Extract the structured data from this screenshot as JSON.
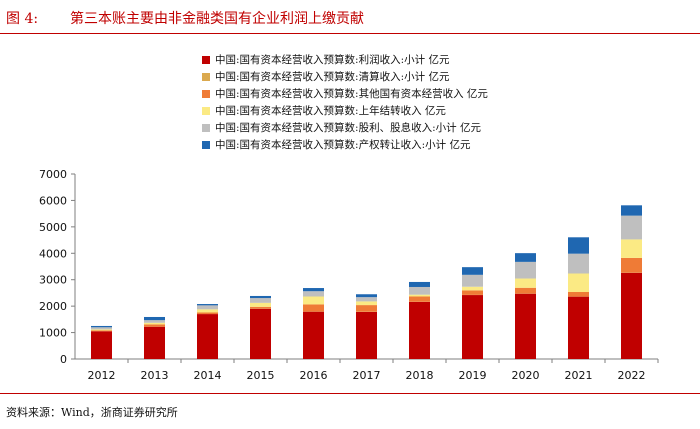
{
  "figure": {
    "label": "图 4:",
    "title": "第三本账主要由非金融类国有企业利润上缴贡献",
    "source": "资料来源：Wind，浙商证券研究所"
  },
  "chart_data": {
    "type": "bar",
    "stacked": true,
    "categories": [
      "2012",
      "2013",
      "2014",
      "2015",
      "2016",
      "2017",
      "2018",
      "2019",
      "2020",
      "2021",
      "2022"
    ],
    "ylim": [
      0,
      7000
    ],
    "yticks": [
      0,
      1000,
      2000,
      3000,
      4000,
      5000,
      6000,
      7000
    ],
    "legend_position": "top-left",
    "series": [
      {
        "name": "中国:国有资本经营收入预算数:利润收入:小计 亿元",
        "color": "#c00000",
        "values": [
          1050,
          1220,
          1700,
          1900,
          1790,
          1780,
          2160,
          2420,
          2470,
          2360,
          3260
        ]
      },
      {
        "name": "中国:国有资本经营收入预算数:清算收入:小计 亿元",
        "color": "#dba94e",
        "values": [
          0,
          0,
          0,
          5,
          5,
          10,
          5,
          5,
          5,
          5,
          5
        ]
      },
      {
        "name": "中国:国有资本经营收入预算数:其他国有资本经营收入 亿元",
        "color": "#ef7b36",
        "values": [
          30,
          90,
          60,
          70,
          270,
          250,
          200,
          170,
          220,
          170,
          560
        ]
      },
      {
        "name": "中国:国有资本经营收入预算数:上年结转收入 亿元",
        "color": "#fbea84",
        "values": [
          40,
          60,
          120,
          150,
          300,
          140,
          70,
          140,
          350,
          700,
          700
        ]
      },
      {
        "name": "中国:国有资本经营收入预算数:股利、股息收入:小计 亿元",
        "color": "#bfbfbf",
        "values": [
          80,
          100,
          150,
          180,
          200,
          160,
          290,
          450,
          630,
          750,
          900
        ]
      },
      {
        "name": "中国:国有资本经营收入预算数:产权转让收入:小计 亿元",
        "color": "#1f67b1",
        "values": [
          50,
          120,
          50,
          80,
          120,
          110,
          190,
          290,
          330,
          620,
          390
        ]
      }
    ]
  }
}
